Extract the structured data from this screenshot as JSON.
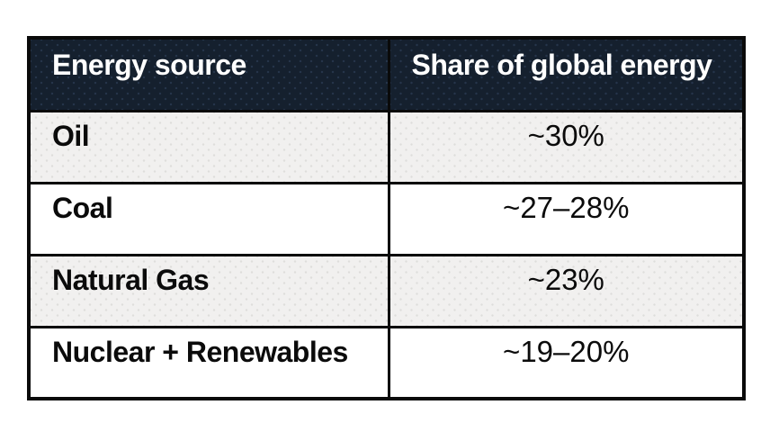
{
  "page": {
    "background": "#ffffff"
  },
  "table": {
    "columns": [
      "Energy source",
      "Share of global energy"
    ],
    "rows": [
      {
        "source": "Oil",
        "share": "~30%"
      },
      {
        "source": "Coal",
        "share": "~27–28%"
      },
      {
        "source": "Natural Gas",
        "share": "~23%"
      },
      {
        "source": "Nuclear + Renewables",
        "share": "~19–20%"
      }
    ],
    "colors": {
      "header_bg": "#15202e",
      "header_text": "#ffffff",
      "row_alt_bg": "#f1f0ef",
      "row_bg": "#ffffff",
      "border": "#0a0a0a",
      "body_text": "#0b0b0b"
    }
  },
  "chart_data": {
    "type": "table",
    "title": "",
    "columns": [
      "Energy source",
      "Share of global energy"
    ],
    "rows": [
      [
        "Oil",
        "~30%"
      ],
      [
        "Coal",
        "~27–28%"
      ],
      [
        "Natural Gas",
        "~23%"
      ],
      [
        "Nuclear + Renewables",
        "~19–20%"
      ]
    ],
    "values_numeric_pct": [
      {
        "source": "Oil",
        "share_pct_approx": 30
      },
      {
        "source": "Coal",
        "share_pct_approx": 27.5
      },
      {
        "source": "Natural Gas",
        "share_pct_approx": 23
      },
      {
        "source": "Nuclear + Renewables",
        "share_pct_approx": 19.5
      }
    ],
    "layout_hints": {
      "header_style": "dark-navy with white bold text",
      "row_striping": "alternating light-gray / white starting with light-gray",
      "value_alignment": "center",
      "label_alignment": "left"
    }
  }
}
